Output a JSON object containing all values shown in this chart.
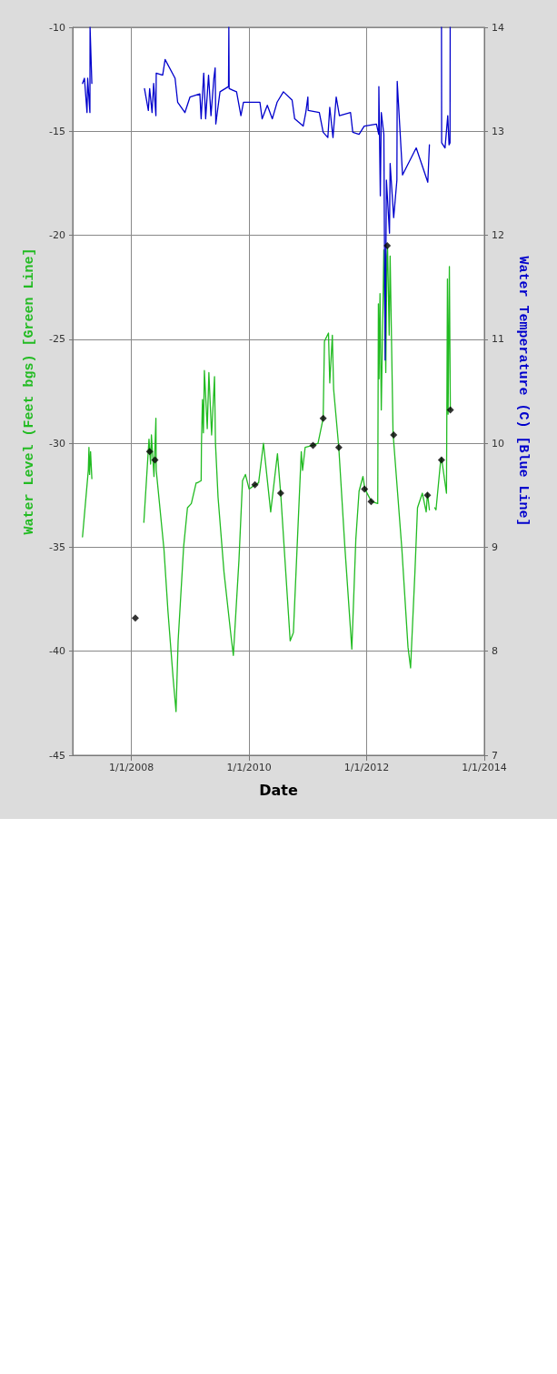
{
  "chart_data": {
    "type": "line",
    "xlabel": "Date",
    "ylabel": "Water Level (Feet bgs) [Green Line]",
    "y2label": "Water Temperature (C) [Blue Line]",
    "xlim": [
      "2007-01-01",
      "2014-01-01"
    ],
    "xticks": [
      {
        "value": "2008-01-01",
        "label": "1/1/2008"
      },
      {
        "value": "2010-01-01",
        "label": "1/1/2010"
      },
      {
        "value": "2012-01-01",
        "label": "1/1/2012"
      },
      {
        "value": "2014-01-01",
        "label": "1/1/2014"
      }
    ],
    "ylim": [
      -45,
      -10
    ],
    "yticks": [
      -45,
      -40,
      -35,
      -30,
      -25,
      -20,
      -15,
      -10
    ],
    "y2lim": [
      7,
      14
    ],
    "y2ticks": [
      7,
      8,
      9,
      10,
      11,
      12,
      13,
      14
    ],
    "grid": true,
    "line_style": "solid",
    "marker": "none",
    "series": [
      {
        "color": "#22bb22",
        "x": [
          "2007-03-03",
          "2007-04-08",
          "2007-04-12",
          "2007-04-16",
          "2007-04-22",
          "2007-04-30",
          "2007-09-01",
          "2008-03-18",
          "2008-04-19",
          "2008-04-29",
          "2008-05-04",
          "2008-05-20",
          "2008-06-01",
          "2008-06-03",
          "2008-07-21",
          "2008-08-15",
          "2008-09-16",
          "2008-10-04",
          "2008-10-17",
          "2008-11-20",
          "2008-12-14",
          "2009-01-07",
          "2009-02-06",
          "2009-02-13",
          "2009-03-09",
          "2009-03-11",
          "2009-03-17",
          "2009-03-23",
          "2009-03-29",
          "2009-04-16",
          "2009-04-26",
          "2009-05-13",
          "2009-05-31",
          "2009-06-06",
          "2009-06-22",
          "2009-07-29",
          "2009-09-11",
          "2009-09-25",
          "2009-10-30",
          "2009-11-21",
          "2009-12-09",
          "2010-01-01",
          "2010-02-06",
          "2010-03-01",
          "2010-03-31",
          "2010-05-15",
          "2010-06-26",
          "2010-07-16",
          "2010-09-13",
          "2010-10-03",
          "2010-11-21",
          "2010-11-29",
          "2010-12-15",
          "2011-02-02",
          "2011-03-05",
          "2011-04-06",
          "2011-04-14",
          "2011-05-09",
          "2011-05-17",
          "2011-06-02",
          "2011-06-10",
          "2011-07-12",
          "2011-08-18",
          "2011-10-01",
          "2011-10-26",
          "2011-11-15",
          "2011-12-09",
          "2011-12-21",
          "2012-01-31",
          "2012-03-10",
          "2012-03-14",
          "2012-03-18",
          "2012-03-24",
          "2012-04-01",
          "2012-04-17",
          "2012-04-29",
          "2012-05-06",
          "2012-05-10",
          "2012-05-20",
          "2012-05-26",
          "2012-06-13",
          "2012-08-07",
          "2012-09-14",
          "2012-09-30",
          "2012-10-27",
          "2012-11-12",
          "2012-12-12",
          "2013-01-05",
          "2013-01-13",
          "2013-01-25",
          "2013-02-10",
          "2013-02-27",
          "2013-03-07",
          "2013-04-04",
          "2013-04-10",
          "2013-05-11",
          "2013-05-17",
          "2013-05-21",
          "2013-05-29",
          "2013-06-04"
        ],
        "values": [
          -34.5,
          -31.3,
          -30.2,
          -31.5,
          -30.4,
          -31.7,
          null,
          -33.8,
          -29.8,
          -31.0,
          -29.6,
          -31.6,
          -28.8,
          -31.3,
          -35.1,
          -38.1,
          -41.3,
          -42.9,
          -39.5,
          -35.0,
          -33.1,
          -32.9,
          -31.9,
          -31.9,
          -31.8,
          -30.0,
          -27.9,
          -29.5,
          -26.5,
          -29.3,
          -26.6,
          -29.6,
          -26.8,
          -30.0,
          -32.6,
          -36.2,
          -39.3,
          -40.2,
          -35.6,
          -31.8,
          -31.5,
          -32.2,
          -32.0,
          -31.9,
          -30.0,
          -33.3,
          -30.5,
          -32.4,
          -39.5,
          -39.1,
          -30.4,
          -31.3,
          -30.2,
          -30.1,
          -30.0,
          -28.8,
          -25.1,
          -24.7,
          -27.1,
          -24.8,
          -27.4,
          -30.2,
          -34.9,
          -39.9,
          -34.6,
          -32.3,
          -31.6,
          -32.2,
          -32.8,
          -32.9,
          -23.3,
          -26.9,
          -22.8,
          -28.4,
          -20.7,
          -26.6,
          -21.0,
          -20.6,
          -24.8,
          -21.0,
          -29.5,
          -35.1,
          -39.8,
          -40.8,
          -36.2,
          -33.1,
          -32.4,
          -33.3,
          -32.4,
          -33.2,
          null,
          -33.1,
          -33.2,
          -30.9,
          -30.7,
          -32.4,
          -22.1,
          -28.6,
          -21.5,
          -28.4
        ]
      },
      {
        "type": "scatter",
        "color": "#000000",
        "marker": "diamond",
        "x": [
          "2008-01-25",
          "2008-04-23",
          "2008-05-26",
          "2010-02-06",
          "2010-07-16",
          "2011-02-02",
          "2011-04-06",
          "2011-07-12",
          "2011-12-19",
          "2012-01-29",
          "2012-05-08",
          "2012-06-17",
          "2013-01-13",
          "2013-04-10",
          "2013-06-04"
        ],
        "values": [
          -38.4,
          -30.4,
          -30.8,
          -32.0,
          -32.4,
          -30.1,
          -28.8,
          -30.2,
          -32.2,
          -32.8,
          -20.5,
          -29.6,
          -32.5,
          -30.8,
          -28.4
        ]
      },
      {
        "axis": "y2",
        "color": "#0000cc",
        "x": [
          "2007-03-03",
          "2007-03-15",
          "2007-03-31",
          "2007-04-04",
          "2007-04-18",
          "2007-04-19",
          "2007-04-30",
          "2007-09-01",
          "2008-03-22",
          "2008-04-15",
          "2008-04-23",
          "2008-05-08",
          "2008-05-18",
          "2008-06-01",
          "2008-06-03",
          "2008-07-13",
          "2008-07-28",
          "2008-09-28",
          "2008-10-14",
          "2008-11-28",
          "2008-12-30",
          "2009-03-01",
          "2009-03-09",
          "2009-03-25",
          "2009-04-06",
          "2009-04-24",
          "2009-05-09",
          "2009-05-27",
          "2009-06-04",
          "2009-06-08",
          "2009-07-04",
          "2009-08-26",
          "2009-08-28",
          "2009-08-30",
          "2009-10-15",
          "2009-11-11",
          "2009-11-27",
          "2010-03-09",
          "2010-03-23",
          "2010-04-24",
          "2010-05-25",
          "2010-06-24",
          "2010-08-02",
          "2010-09-25",
          "2010-10-11",
          "2010-12-03",
          "2010-12-19",
          "2011-01-01",
          "2011-01-03",
          "2011-03-13",
          "2011-04-06",
          "2011-05-05",
          "2011-05-17",
          "2011-06-06",
          "2011-06-26",
          "2011-07-16",
          "2011-09-23",
          "2011-10-07",
          "2011-11-15",
          "2011-12-17",
          "2012-03-02",
          "2012-03-16",
          "2012-03-17",
          "2012-03-26",
          "2012-04-01",
          "2012-04-17",
          "2012-04-25",
          "2012-05-03",
          "2012-05-22",
          "2012-05-26",
          "2012-06-17",
          "2012-07-07",
          "2012-07-09",
          "2012-08-11",
          "2012-11-04",
          "2013-01-15",
          "2013-01-25",
          "2013-03-01",
          "2013-04-10",
          "2013-04-11",
          "2013-05-02",
          "2013-05-19",
          "2013-05-27",
          "2013-06-02",
          "2013-06-03"
        ],
        "values": [
          13.46,
          13.51,
          13.18,
          13.51,
          13.18,
          14,
          13.46,
          null,
          13.41,
          13.2,
          13.41,
          13.18,
          13.46,
          13.15,
          13.56,
          13.54,
          13.69,
          13.51,
          13.28,
          13.18,
          13.33,
          13.36,
          13.12,
          13.56,
          13.12,
          13.54,
          13.15,
          13.51,
          13.61,
          13.07,
          13.38,
          13.43,
          14,
          13.41,
          13.38,
          13.15,
          13.28,
          13.28,
          13.12,
          13.25,
          13.12,
          13.28,
          13.38,
          13.3,
          13.12,
          13.05,
          13.18,
          13.33,
          13.2,
          13.18,
          12.99,
          12.94,
          13.23,
          12.94,
          13.33,
          13.15,
          13.18,
          12.99,
          12.97,
          13.05,
          13.07,
          12.97,
          13.43,
          12.38,
          13.18,
          12.97,
          10.8,
          12.53,
          12.02,
          12.69,
          12.17,
          12.53,
          13.48,
          12.58,
          12.84,
          12.51,
          12.87,
          null,
          14,
          12.89,
          12.84,
          13.15,
          12.87,
          12.89,
          14
        ]
      }
    ]
  }
}
